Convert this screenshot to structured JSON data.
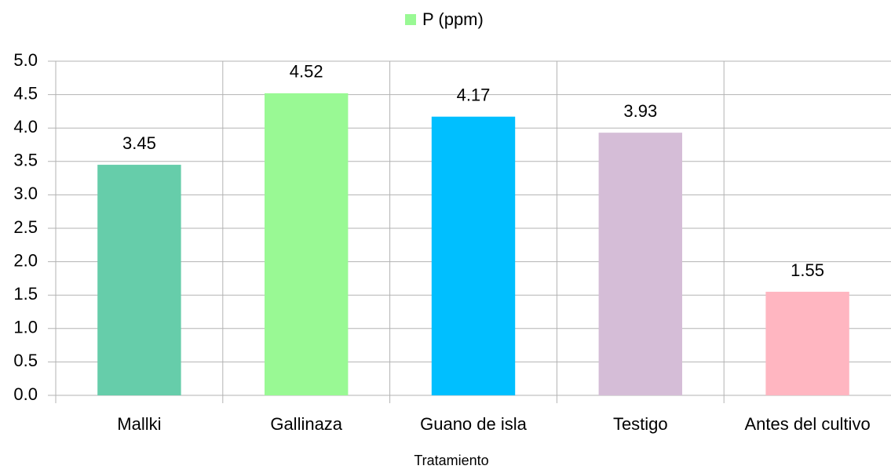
{
  "chart_data": {
    "type": "bar",
    "x_label": "Tratamiento",
    "categories": [
      "Mallki",
      "Gallinaza",
      "Guano de isla",
      "Testigo",
      "Antes del cultivo"
    ],
    "series": [
      {
        "name": "P (ppm)",
        "color": "#99f994",
        "values": [
          3.45,
          4.52,
          4.17,
          3.93,
          1.55
        ],
        "colors": [
          "#66cdaa",
          "#99f994",
          "#00bfff",
          "#d5bdd7",
          "#ffb6c1"
        ]
      }
    ],
    "ylim": [
      0,
      5
    ],
    "yticks": [
      {
        "value": 0,
        "label": "0.0"
      },
      {
        "value": 0.5,
        "label": "0.5"
      },
      {
        "value": 1,
        "label": "1.0"
      },
      {
        "value": 1.5,
        "label": "1.5"
      },
      {
        "value": 2,
        "label": "2.0"
      },
      {
        "value": 2.5,
        "label": "2.5"
      },
      {
        "value": 3,
        "label": "3.0"
      },
      {
        "value": 3.5,
        "label": "3.5"
      },
      {
        "value": 4,
        "label": "4.0"
      },
      {
        "value": 4.5,
        "label": "4.5"
      },
      {
        "value": 5,
        "label": "5.0"
      }
    ],
    "grid": true,
    "legend": "top"
  }
}
